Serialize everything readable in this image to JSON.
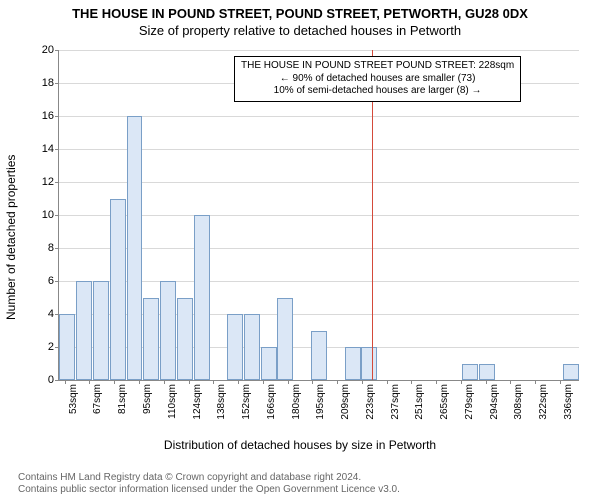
{
  "titles": {
    "line1": "THE HOUSE IN POUND STREET, POUND STREET, PETWORTH, GU28 0DX",
    "line2": "Size of property relative to detached houses in Petworth"
  },
  "axes": {
    "ylabel": "Number of detached properties",
    "xlabel": "Distribution of detached houses by size in Petworth",
    "ymax": 20,
    "ymin": 0,
    "ytick_step": 2,
    "xcategories": [
      "53sqm",
      "67sqm",
      "81sqm",
      "95sqm",
      "110sqm",
      "124sqm",
      "138sqm",
      "152sqm",
      "166sqm",
      "180sqm",
      "195sqm",
      "209sqm",
      "223sqm",
      "237sqm",
      "251sqm",
      "265sqm",
      "279sqm",
      "294sqm",
      "308sqm",
      "322sqm",
      "336sqm"
    ],
    "label_fontsize": 12,
    "tick_fontsize": 11
  },
  "chart": {
    "type": "bar",
    "values": [
      4,
      6,
      6,
      11,
      16,
      5,
      6,
      5,
      10,
      0,
      4,
      4,
      2,
      5,
      0,
      3,
      0,
      2,
      2,
      0,
      0,
      0,
      0,
      0,
      1,
      1,
      0,
      0,
      0,
      0,
      1
    ],
    "bar_fill": "#dbe7f6",
    "bar_border": "#7a9fc7",
    "grid_color": "#d9d9d9",
    "background_color": "#ffffff",
    "bar_width_ratio": 0.95
  },
  "reference": {
    "value_sqm": 228,
    "line_color": "#d44a3a",
    "annotation": {
      "line1": "THE HOUSE IN POUND STREET POUND STREET: 228sqm",
      "line2": "← 90% of detached houses are smaller (73)",
      "line3": "10% of semi-detached houses are larger (8) →"
    }
  },
  "footer": {
    "line1": "Contains HM Land Registry data © Crown copyright and database right 2024.",
    "line2": "Contains public sector information licensed under the Open Government Licence v3.0."
  }
}
